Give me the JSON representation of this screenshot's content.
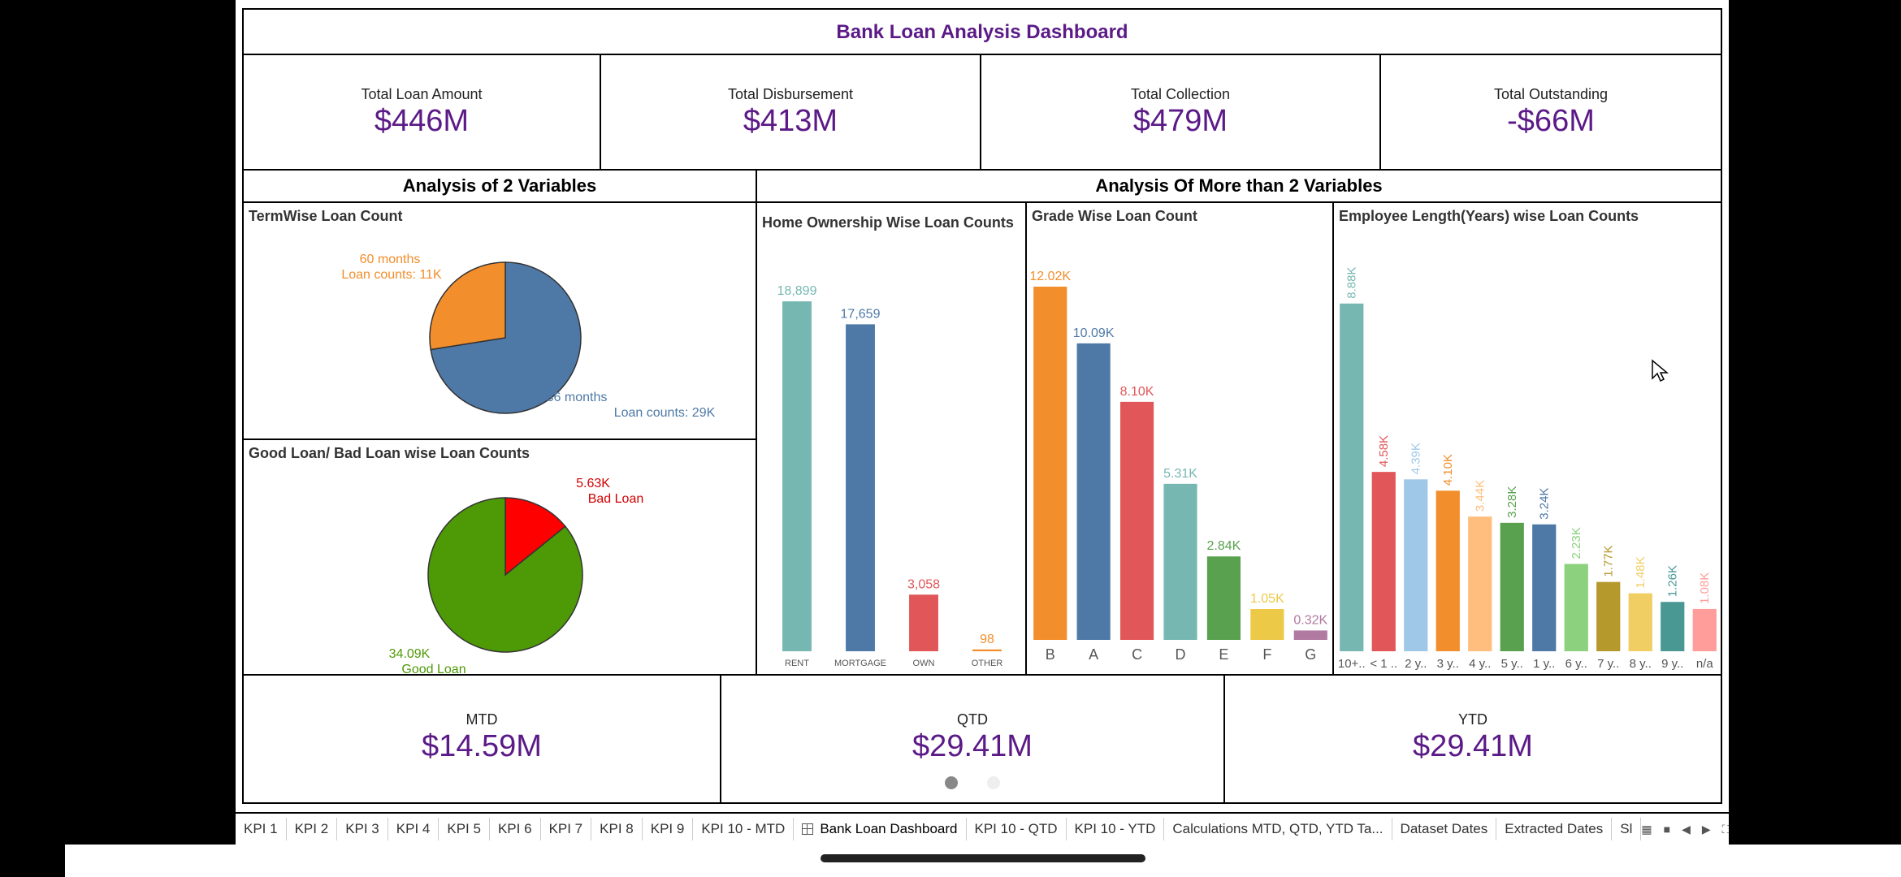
{
  "dashboard": {
    "title": "Bank Loan Analysis Dashboard",
    "kpis": [
      {
        "label": "Total Loan Amount",
        "value": "$446M"
      },
      {
        "label": "Total Disbursement",
        "value": "$413M"
      },
      {
        "label": "Total Collection",
        "value": "$479M"
      },
      {
        "label": "Total Outstanding",
        "value": "-$66M"
      }
    ],
    "section_2vars": "Analysis of 2 Variables",
    "section_more": "Analysis Of More than 2 Variables",
    "bottom_kpis": [
      {
        "label": "MTD",
        "value": "$14.59M"
      },
      {
        "label": "QTD",
        "value": "$29.41M"
      },
      {
        "label": "YTD",
        "value": "$29.41M"
      }
    ],
    "page_dots": 2,
    "active_dot": 0
  },
  "chart_data": [
    {
      "type": "pie",
      "title": "TermWise Loan Count",
      "slices": [
        {
          "name": "36 months",
          "value": 29,
          "label_line1": "36 months",
          "label_line2": "Loan counts: 29K",
          "color": "#4e79a7"
        },
        {
          "name": "60 months",
          "value": 11,
          "label_line1": "60 months",
          "label_line2": "Loan counts: 11K",
          "color": "#f28e2b"
        }
      ]
    },
    {
      "type": "pie",
      "title": "Good Loan/ Bad Loan wise Loan Counts",
      "slices": [
        {
          "name": "Bad Loan",
          "value": 5.63,
          "label_line1": "5.63K",
          "label_line2": "Bad Loan",
          "color": "#ff0000",
          "text_color": "#d40000"
        },
        {
          "name": "Good Loan",
          "value": 34.09,
          "label_line1": "34.09K",
          "label_line2": "Good Loan",
          "color": "#4e9a06",
          "text_color": "#4e9a06"
        }
      ]
    },
    {
      "type": "bar",
      "title": "Home Ownership Wise Loan Counts",
      "categories": [
        "RENT",
        "MORTGAGE",
        "OWN",
        "OTHER"
      ],
      "values": [
        18899,
        17659,
        3058,
        98
      ],
      "labels": [
        "18,899",
        "17,659",
        "3,058",
        "98"
      ],
      "colors": [
        "#76b7b2",
        "#4e79a7",
        "#e15759",
        "#f28e2b"
      ],
      "ylim": [
        0,
        20000
      ]
    },
    {
      "type": "bar",
      "title": "Grade Wise Loan Count",
      "categories": [
        "B",
        "A",
        "C",
        "D",
        "E",
        "F",
        "G"
      ],
      "values": [
        12.02,
        10.09,
        8.1,
        5.31,
        2.84,
        1.05,
        0.32
      ],
      "labels": [
        "12.02K",
        "10.09K",
        "8.10K",
        "5.31K",
        "2.84K",
        "1.05K",
        "0.32K"
      ],
      "colors": [
        "#f28e2b",
        "#4e79a7",
        "#e15759",
        "#76b7b2",
        "#59a14f",
        "#edc948",
        "#b07aa1"
      ],
      "ylim": [
        0,
        12.6
      ]
    },
    {
      "type": "bar",
      "title": "Employee Length(Years) wise Loan Counts",
      "categories": [
        "10+..",
        "< 1 ..",
        "2 y..",
        "3 y..",
        "4 y..",
        "5 y..",
        "1 y..",
        "6 y..",
        "7 y..",
        "8 y..",
        "9 y..",
        "n/a"
      ],
      "values": [
        8.88,
        4.58,
        4.39,
        4.1,
        3.44,
        3.28,
        3.24,
        2.23,
        1.77,
        1.48,
        1.26,
        1.08
      ],
      "labels": [
        "8.88K",
        "4.58K",
        "4.39K",
        "4.10K",
        "3.44K",
        "3.28K",
        "3.24K",
        "2.23K",
        "1.77K",
        "1.48K",
        "1.26K",
        "1.08K"
      ],
      "colors": [
        "#76b7b2",
        "#e15759",
        "#9fc8e8",
        "#f28e2b",
        "#ffbe7d",
        "#59a14f",
        "#4e79a7",
        "#8cd17d",
        "#b6992d",
        "#f1ce63",
        "#499894",
        "#ff9d9a"
      ],
      "ylim": [
        0,
        9.0
      ]
    }
  ],
  "tabs": [
    {
      "label": "KPI 1"
    },
    {
      "label": "KPI 2"
    },
    {
      "label": "KPI 3"
    },
    {
      "label": "KPI 4"
    },
    {
      "label": "KPI 5"
    },
    {
      "label": "KPI 6"
    },
    {
      "label": "KPI 7"
    },
    {
      "label": "KPI 8"
    },
    {
      "label": "KPI 9"
    },
    {
      "label": "KPI 10 - MTD"
    },
    {
      "label": "Bank Loan Dashboard",
      "active": true
    },
    {
      "label": "KPI 10 - QTD"
    },
    {
      "label": "KPI 10 - YTD"
    },
    {
      "label": "Calculations MTD, QTD, YTD Ta..."
    },
    {
      "label": "Dataset Dates"
    },
    {
      "label": "Extracted Dates"
    },
    {
      "label": "Sl"
    }
  ]
}
